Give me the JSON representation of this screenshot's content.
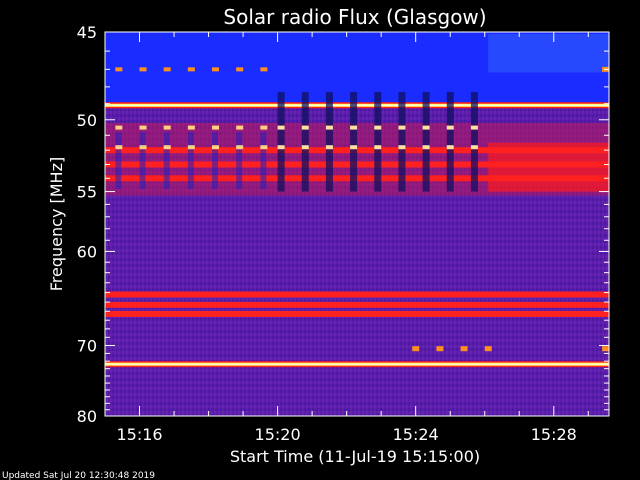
{
  "chart_data": {
    "type": "heatmap",
    "title": "Solar radio Flux (Glasgow)",
    "xlabel": "Start Time (11-Jul-19 15:15:00)",
    "ylabel": "Frequency [MHz]",
    "x_ticks": [
      "15:16",
      "15:20",
      "15:24",
      "15:28"
    ],
    "x_tick_minutes": [
      1,
      5,
      9,
      13
    ],
    "xlim_minutes": [
      0,
      14.6
    ],
    "y_ticks": [
      45,
      50,
      55,
      60,
      70,
      80
    ],
    "ylim": [
      45,
      80
    ],
    "y_scale": "reciprocal",
    "colormap": "black-blue-purple-red-yellow-white",
    "colors": {
      "background": "#5a1eaa",
      "strong_band": "#ff2020",
      "hot_band": "#ffff60",
      "interference_block": "#1a2cff"
    },
    "persistent_bands_mhz": [
      49.1,
      52.0,
      53.0,
      54.0,
      64.2,
      65.3,
      66.3,
      72.4
    ],
    "emission_notes": {
      "blue_interference_range_mhz": [
        45.0,
        48.9
      ],
      "periodic_markers_mhz": [
        47.0,
        50.5,
        51.8,
        70.4
      ]
    },
    "updated_text": "Updated Sat Jul 20 12:30:48 2019"
  }
}
